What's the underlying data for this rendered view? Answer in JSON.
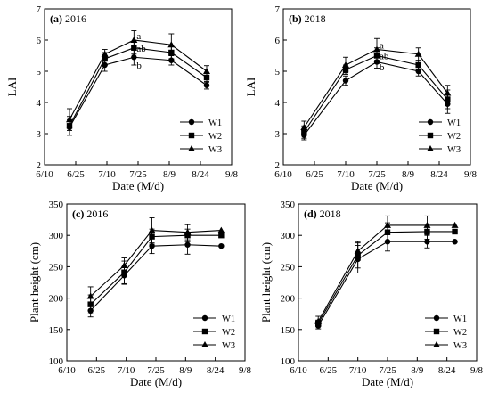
{
  "chart_data": [
    {
      "id": "a",
      "type": "line",
      "panel_label": "(a)",
      "title": "2016",
      "xlabel": "Date (M/d)",
      "ylabel": "LAI",
      "x_ticks": [
        "6/10",
        "6/25",
        "7/10",
        "7/25",
        "8/9",
        "8/24",
        "9/8"
      ],
      "y_ticks": [
        "2",
        "3",
        "4",
        "5",
        "6",
        "7"
      ],
      "xlim": [
        "6/10",
        "9/8"
      ],
      "ylim": [
        2,
        7
      ],
      "legend_position": "bottom-right",
      "x": [
        "6/22",
        "7/9",
        "7/23",
        "8/10",
        "8/27"
      ],
      "series": [
        {
          "name": "W1",
          "marker": "circle",
          "values": [
            3.2,
            5.2,
            5.45,
            5.35,
            4.55
          ],
          "error": [
            0.25,
            0.2,
            0.25,
            0.15,
            0.12
          ]
        },
        {
          "name": "W2",
          "marker": "square",
          "values": [
            3.25,
            5.4,
            5.75,
            5.6,
            4.8
          ],
          "error": [
            0.3,
            0.2,
            0.2,
            0.2,
            0.15
          ]
        },
        {
          "name": "W3",
          "marker": "triangle",
          "values": [
            3.45,
            5.55,
            6.0,
            5.85,
            5.0
          ],
          "error": [
            0.35,
            0.15,
            0.3,
            0.35,
            0.18
          ]
        }
      ],
      "annotations": [
        {
          "text": "a",
          "x": "7/23",
          "y": 6.15
        },
        {
          "text": "ab",
          "x": "7/23",
          "y": 5.75
        },
        {
          "text": "b",
          "x": "7/23",
          "y": 5.2
        }
      ]
    },
    {
      "id": "b",
      "type": "line",
      "panel_label": "(b)",
      "title": "2018",
      "xlabel": "Date (M/d)",
      "ylabel": "LAI",
      "x_ticks": [
        "6/10",
        "6/25",
        "7/10",
        "7/25",
        "8/9",
        "8/24",
        "9/8"
      ],
      "y_ticks": [
        "2",
        "3",
        "4",
        "5",
        "6",
        "7"
      ],
      "xlim": [
        "6/10",
        "9/8"
      ],
      "ylim": [
        2,
        7
      ],
      "legend_position": "bottom-right",
      "x": [
        "6/20",
        "7/10",
        "7/25",
        "8/14",
        "8/28"
      ],
      "series": [
        {
          "name": "W1",
          "marker": "circle",
          "values": [
            2.95,
            4.7,
            5.3,
            5.0,
            3.95
          ],
          "error": [
            0.15,
            0.15,
            0.2,
            0.15,
            0.3
          ]
        },
        {
          "name": "W2",
          "marker": "square",
          "values": [
            3.05,
            5.05,
            5.5,
            5.2,
            4.1
          ],
          "error": [
            0.2,
            0.15,
            0.25,
            0.15,
            0.3
          ]
        },
        {
          "name": "W3",
          "marker": "triangle",
          "values": [
            3.2,
            5.2,
            5.7,
            5.55,
            4.3
          ],
          "error": [
            0.2,
            0.25,
            0.35,
            0.2,
            0.25
          ]
        }
      ],
      "annotations": [
        {
          "text": "a",
          "x": "7/25",
          "y": 5.85
        },
        {
          "text": "ab",
          "x": "7/25",
          "y": 5.5
        },
        {
          "text": "b",
          "x": "7/25",
          "y": 5.15
        }
      ]
    },
    {
      "id": "c",
      "type": "line",
      "panel_label": "(c)",
      "title": "2016",
      "xlabel": "Date (M/d)",
      "ylabel": "Plant height (cm)",
      "x_ticks": [
        "6/10",
        "6/25",
        "7/10",
        "7/25",
        "8/9",
        "8/24",
        "9/8"
      ],
      "y_ticks": [
        "100",
        "150",
        "200",
        "250",
        "300",
        "350"
      ],
      "xlim": [
        "6/10",
        "9/8"
      ],
      "ylim": [
        100,
        350
      ],
      "legend_position": "bottom-right",
      "x": [
        "6/22",
        "7/9",
        "7/23",
        "8/10",
        "8/27"
      ],
      "series": [
        {
          "name": "W1",
          "marker": "circle",
          "values": [
            180,
            236,
            283,
            285,
            283
          ],
          "error": [
            10,
            14,
            12,
            15,
            0
          ]
        },
        {
          "name": "W2",
          "marker": "square",
          "values": [
            190,
            241,
            298,
            300,
            300
          ],
          "error": [
            15,
            18,
            12,
            10,
            0
          ]
        },
        {
          "name": "W3",
          "marker": "triangle",
          "values": [
            203,
            252,
            308,
            305,
            308
          ],
          "error": [
            15,
            12,
            20,
            12,
            0
          ]
        }
      ],
      "annotations": []
    },
    {
      "id": "d",
      "type": "line",
      "panel_label": "(d)",
      "title": "2018",
      "xlabel": "Date (M/d)",
      "ylabel": "Plant height (cm)",
      "x_ticks": [
        "6/10",
        "6/25",
        "7/10",
        "7/25",
        "8/9",
        "8/24",
        "9/8"
      ],
      "y_ticks": [
        "100",
        "150",
        "200",
        "250",
        "300",
        "350"
      ],
      "xlim": [
        "6/10",
        "9/8"
      ],
      "ylim": [
        100,
        350
      ],
      "legend_position": "bottom-right",
      "x": [
        "6/20",
        "7/10",
        "7/25",
        "8/14",
        "8/28"
      ],
      "series": [
        {
          "name": "W1",
          "marker": "circle",
          "values": [
            156,
            262,
            290,
            290,
            290
          ],
          "error": [
            5,
            22,
            15,
            10,
            0
          ]
        },
        {
          "name": "W2",
          "marker": "square",
          "values": [
            160,
            268,
            305,
            306,
            306
          ],
          "error": [
            5,
            20,
            15,
            12,
            0
          ]
        },
        {
          "name": "W3",
          "marker": "triangle",
          "values": [
            163,
            275,
            316,
            316,
            316
          ],
          "error": [
            8,
            15,
            15,
            15,
            0
          ]
        }
      ],
      "annotations": []
    }
  ]
}
